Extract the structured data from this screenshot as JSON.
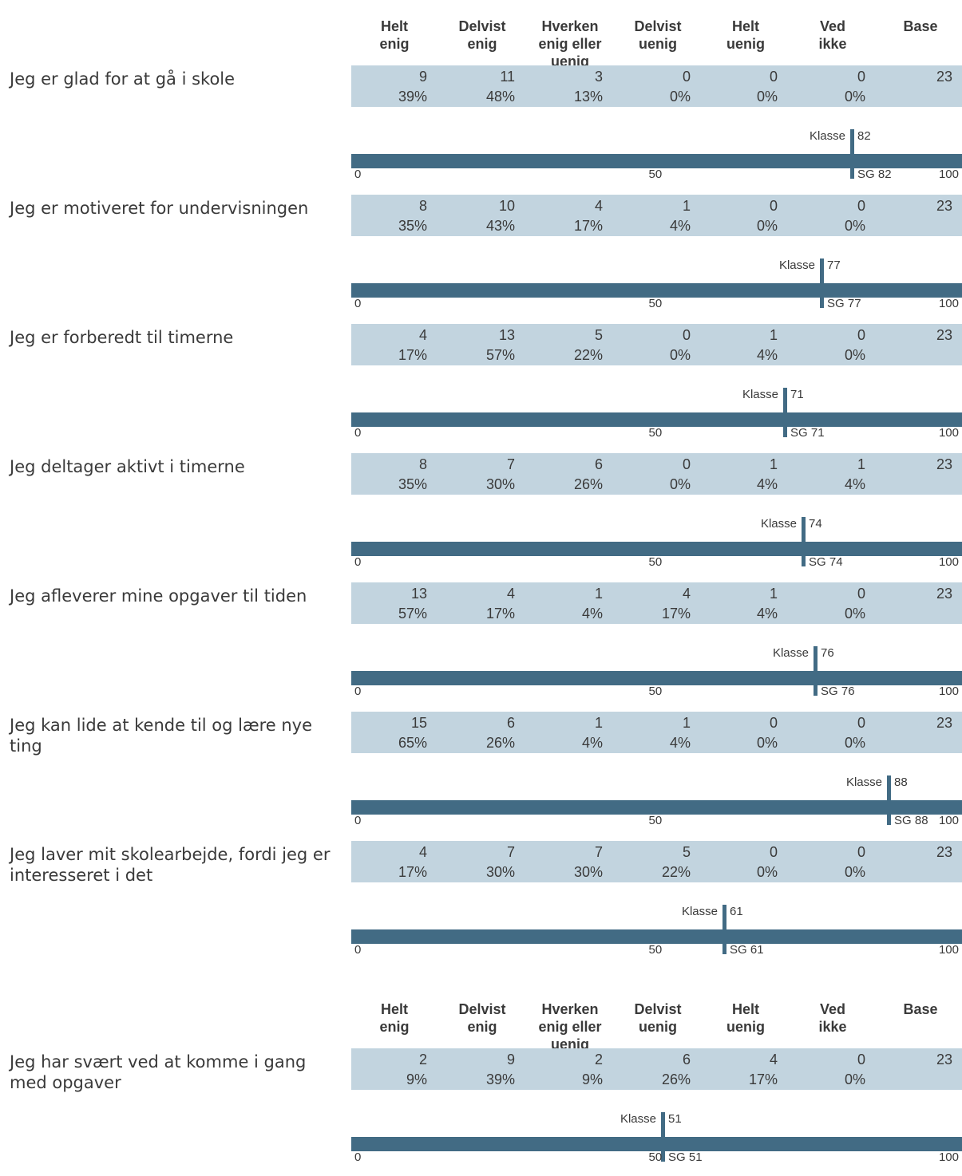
{
  "header": {
    "columns": [
      "Helt\nenig",
      "Delvist\nenig",
      "Hverken\nenig eller\nuenig",
      "Delvist\nuenig",
      "Helt\nuenig",
      "Ved\nikke",
      "Base"
    ]
  },
  "scale_labels": {
    "min": "0",
    "mid": "50",
    "max": "100",
    "class_label": "Klasse",
    "sg_prefix": "SG"
  },
  "chart_data": [
    {
      "type": "table",
      "title": "",
      "columns": [
        "Helt enig",
        "Delvist enig",
        "Hverken enig eller uenig",
        "Delvist uenig",
        "Helt uenig",
        "Ved ikke",
        "Base"
      ],
      "items": [
        {
          "question": "Jeg er glad for at gå i skole",
          "counts": [
            "9",
            "11",
            "3",
            "0",
            "0",
            "0"
          ],
          "percents": [
            "39%",
            "48%",
            "13%",
            "0%",
            "0%",
            "0%"
          ],
          "base": "23",
          "klasse": 82,
          "sg": 82
        },
        {
          "question": "Jeg er motiveret for undervisningen",
          "counts": [
            "8",
            "10",
            "4",
            "1",
            "0",
            "0"
          ],
          "percents": [
            "35%",
            "43%",
            "17%",
            "4%",
            "0%",
            "0%"
          ],
          "base": "23",
          "klasse": 77,
          "sg": 77
        },
        {
          "question": "Jeg er forberedt til timerne",
          "counts": [
            "4",
            "13",
            "5",
            "0",
            "1",
            "0"
          ],
          "percents": [
            "17%",
            "57%",
            "22%",
            "0%",
            "4%",
            "0%"
          ],
          "base": "23",
          "klasse": 71,
          "sg": 71
        },
        {
          "question": "Jeg deltager aktivt i timerne",
          "counts": [
            "8",
            "7",
            "6",
            "0",
            "1",
            "1"
          ],
          "percents": [
            "35%",
            "30%",
            "26%",
            "0%",
            "4%",
            "4%"
          ],
          "base": "23",
          "klasse": 74,
          "sg": 74
        },
        {
          "question": "Jeg afleverer mine opgaver til tiden",
          "counts": [
            "13",
            "4",
            "1",
            "4",
            "1",
            "0"
          ],
          "percents": [
            "57%",
            "17%",
            "4%",
            "17%",
            "4%",
            "0%"
          ],
          "base": "23",
          "klasse": 76,
          "sg": 76
        },
        {
          "question": "Jeg kan lide at kende til og lære nye ting",
          "counts": [
            "15",
            "6",
            "1",
            "1",
            "0",
            "0"
          ],
          "percents": [
            "65%",
            "26%",
            "4%",
            "4%",
            "0%",
            "0%"
          ],
          "base": "23",
          "klasse": 88,
          "sg": 88
        },
        {
          "question": "Jeg laver mit skolearbejde, fordi jeg er interesseret i det",
          "counts": [
            "4",
            "7",
            "7",
            "5",
            "0",
            "0"
          ],
          "percents": [
            "17%",
            "30%",
            "30%",
            "22%",
            "0%",
            "0%"
          ],
          "base": "23",
          "klasse": 61,
          "sg": 61
        }
      ]
    },
    {
      "type": "table",
      "title": "",
      "columns": [
        "Helt enig",
        "Delvist enig",
        "Hverken enig eller uenig",
        "Delvist uenig",
        "Helt uenig",
        "Ved ikke",
        "Base"
      ],
      "items": [
        {
          "question": "Jeg har svært ved at komme i gang med opgaver",
          "counts": [
            "2",
            "9",
            "2",
            "6",
            "4",
            "0"
          ],
          "percents": [
            "9%",
            "39%",
            "9%",
            "26%",
            "17%",
            "0%"
          ],
          "base": "23",
          "klasse": 51,
          "sg": 51
        }
      ]
    }
  ],
  "colors": {
    "bar": "#426b84",
    "stats_bg": "#c2d4df",
    "text": "#3a3a3a"
  }
}
